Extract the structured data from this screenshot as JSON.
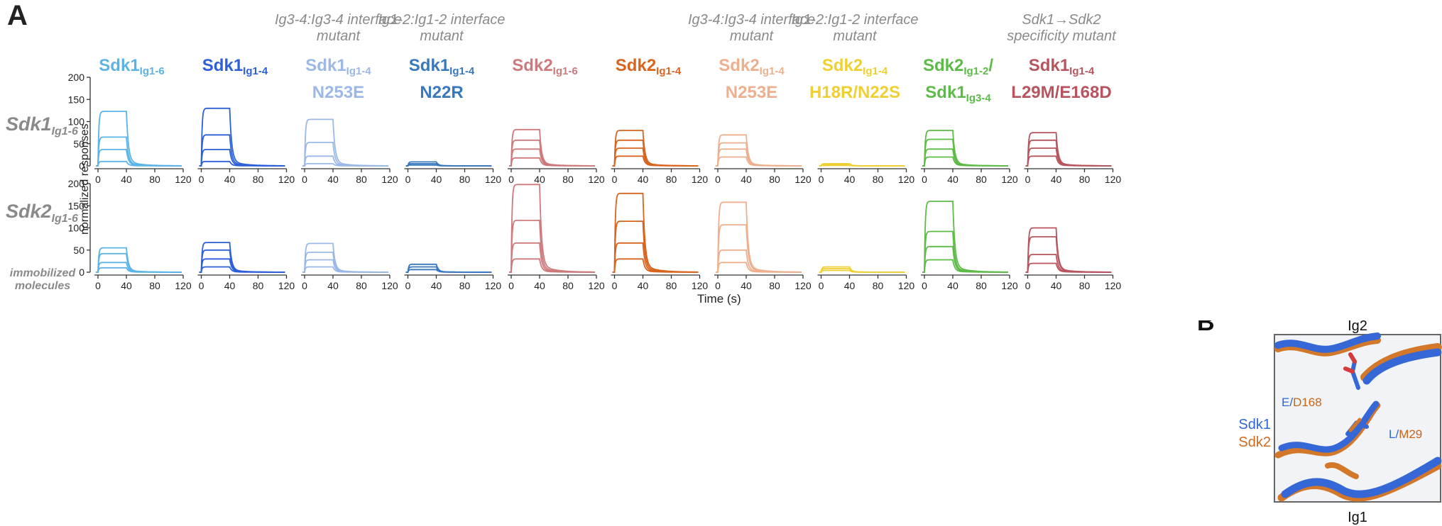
{
  "panel_a_label": "A",
  "panel_b_label": "B",
  "columns": [
    {
      "note": "",
      "name": "Sdk1",
      "sub": "Ig1-6",
      "line2": "",
      "color": "#5bb4e5"
    },
    {
      "note": "",
      "name": "Sdk1",
      "sub": "Ig1-4",
      "line2": "",
      "color": "#2c5fd9"
    },
    {
      "note": "Ig3-4:Ig3-4 interface mutant",
      "name": "Sdk1",
      "sub": "Ig1-4",
      "line2": "N253E",
      "color": "#9bb8e6"
    },
    {
      "note": "Ig1-2:Ig1-2 interface mutant",
      "name": "Sdk1",
      "sub": "Ig1-4",
      "line2": "N22R",
      "color": "#3a78bd"
    },
    {
      "note": "",
      "name": "Sdk2",
      "sub": "Ig1-6",
      "line2": "",
      "color": "#cd7a7c"
    },
    {
      "note": "",
      "name": "Sdk2",
      "sub": "Ig1-4",
      "line2": "",
      "color": "#d9641e"
    },
    {
      "note": "Ig3-4:Ig3-4 interface mutant",
      "name": "Sdk2",
      "sub": "Ig1-4",
      "line2": "N253E",
      "color": "#edb08f"
    },
    {
      "note": "Ig1-2:Ig1-2 interface mutant",
      "name": "Sdk2",
      "sub": "Ig1-4",
      "line2": "H18R/N22S",
      "color": "#efd034"
    },
    {
      "note": "",
      "name": "Sdk2",
      "sub": "Ig1-2",
      "name_suffix": "/",
      "line2": "Sdk1",
      "line2_sub": "Ig3-4",
      "color": "#5dbb48"
    },
    {
      "note": "Sdk1→Sdk2 specificity mutant",
      "name": "Sdk1",
      "sub": "Ig1-4",
      "line2": "L29M/E168D",
      "color": "#b7545d"
    }
  ],
  "rows": [
    {
      "name": "Sdk1",
      "sub": "Ig1-6"
    },
    {
      "name": "Sdk2",
      "sub": "Ig1-6"
    }
  ],
  "immobilized_label": "immobilized molecules",
  "y_axis_label": "normalized responses",
  "x_axis_label": "Time (s)",
  "panel_b": {
    "top_label": "Ig2",
    "bottom_label": "Ig1",
    "sdk1_label": "Sdk1",
    "sdk2_label": "Sdk2",
    "res1_a": "E/",
    "res1_b": "D168",
    "res2_a": "L/",
    "res2_b": "M29",
    "sdk1_color": "#2f66d8",
    "sdk2_color": "#d06a1c"
  },
  "chart_data": {
    "type": "line",
    "description_units": "SPR sensorgrams; x = time (s), y = normalized response",
    "x_ticks": [
      0,
      40,
      80,
      120
    ],
    "xlim": [
      -5,
      120
    ],
    "row0_y_ticks": [
      0,
      50,
      100,
      150,
      200
    ],
    "row1_y_ticks": [
      0,
      50,
      100,
      150,
      200
    ],
    "ylim": [
      0,
      200
    ],
    "injection_end_s": 40,
    "grid": false,
    "panels": [
      {
        "row": 0,
        "col": 0,
        "plateaus": [
          123,
          65,
          37,
          10
        ]
      },
      {
        "row": 0,
        "col": 1,
        "plateaus": [
          130,
          70,
          37,
          10
        ]
      },
      {
        "row": 0,
        "col": 2,
        "plateaus": [
          105,
          53,
          22,
          5
        ]
      },
      {
        "row": 0,
        "col": 3,
        "plateaus": [
          9,
          5,
          2
        ]
      },
      {
        "row": 0,
        "col": 4,
        "plateaus": [
          82,
          58,
          38,
          18
        ]
      },
      {
        "row": 0,
        "col": 5,
        "plateaus": [
          80,
          58,
          40,
          22
        ]
      },
      {
        "row": 0,
        "col": 6,
        "plateaus": [
          70,
          52,
          38,
          20
        ]
      },
      {
        "row": 0,
        "col": 7,
        "plateaus": [
          5,
          3,
          1
        ]
      },
      {
        "row": 0,
        "col": 8,
        "plateaus": [
          80,
          60,
          38,
          20
        ]
      },
      {
        "row": 0,
        "col": 9,
        "plateaus": [
          75,
          58,
          40,
          22
        ]
      },
      {
        "row": 1,
        "col": 0,
        "plateaus": [
          55,
          42,
          22,
          10
        ]
      },
      {
        "row": 1,
        "col": 1,
        "plateaus": [
          67,
          50,
          30,
          12
        ]
      },
      {
        "row": 1,
        "col": 2,
        "plateaus": [
          65,
          45,
          28,
          12
        ]
      },
      {
        "row": 1,
        "col": 3,
        "plateaus": [
          18,
          12,
          6
        ]
      },
      {
        "row": 1,
        "col": 4,
        "plateaus": [
          198,
          117,
          66,
          30
        ]
      },
      {
        "row": 1,
        "col": 5,
        "plateaus": [
          178,
          115,
          66,
          30
        ]
      },
      {
        "row": 1,
        "col": 6,
        "plateaus": [
          158,
          107,
          50,
          22
        ]
      },
      {
        "row": 1,
        "col": 7,
        "plateaus": [
          12,
          8,
          4
        ]
      },
      {
        "row": 1,
        "col": 8,
        "plateaus": [
          160,
          92,
          58,
          28
        ]
      },
      {
        "row": 1,
        "col": 9,
        "plateaus": [
          100,
          80,
          40,
          20
        ]
      }
    ]
  }
}
